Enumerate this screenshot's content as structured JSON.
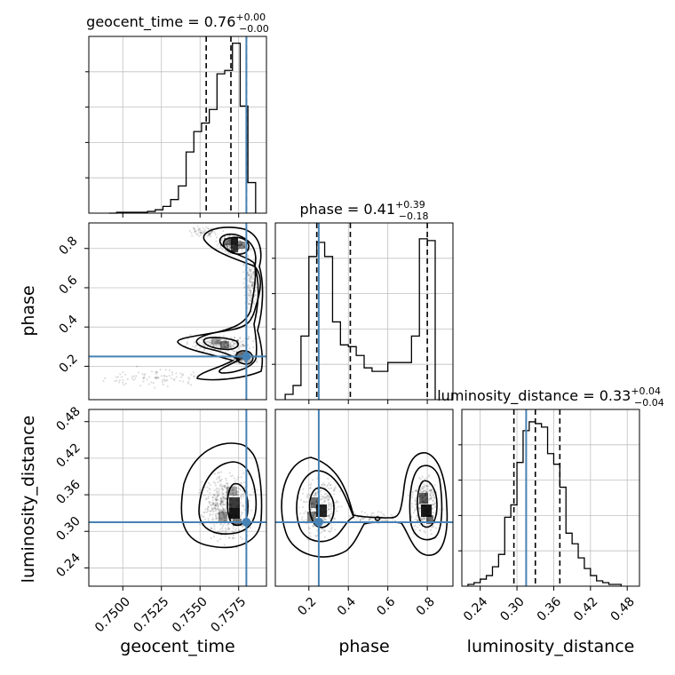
{
  "colors": {
    "truth": "#4682b4",
    "hist": "#000000",
    "grid": "#c0c0c0",
    "quantile": "#000000"
  },
  "chart_data": {
    "type": "corner",
    "parameters": [
      "geocent_time",
      "phase",
      "luminosity_distance"
    ],
    "truth": {
      "geocent_time": 0.758,
      "phase": 0.25,
      "luminosity_distance": 0.315
    },
    "panels": [
      {
        "id": "hist-geocent_time",
        "type": "histogram",
        "param": "geocent_time",
        "title": {
          "name": "geocent_time",
          "median": "0.76",
          "plus": "+0.00",
          "minus": "−0.00"
        },
        "xlim": [
          0.7478,
          0.7593
        ],
        "ylim": [
          0,
          1.04
        ],
        "edges": [
          0.7491,
          0.7496,
          0.7501,
          0.7506,
          0.7511,
          0.7516,
          0.7521,
          0.7526,
          0.7531,
          0.7536,
          0.7541,
          0.7546,
          0.7551,
          0.7556,
          0.7561,
          0.7566,
          0.7571,
          0.7576,
          0.7581,
          0.7586
        ],
        "counts": [
          0.0,
          0.005,
          0.005,
          0.005,
          0.005,
          0.01,
          0.02,
          0.04,
          0.08,
          0.16,
          0.36,
          0.48,
          0.53,
          0.61,
          0.82,
          0.84,
          1.0,
          0.63,
          0.18
        ],
        "quantiles": [
          0.7554,
          0.757,
          0.758
        ],
        "xticks": [
          0.75,
          0.7525,
          0.755,
          0.7575
        ],
        "xtick_labels": []
      },
      {
        "id": "scatter-phase-geocent",
        "type": "density2d",
        "x_param": "geocent_time",
        "y_param": "phase",
        "xlim": [
          0.7478,
          0.7593
        ],
        "ylim": [
          0.03,
          0.93
        ],
        "yticks": [
          0.2,
          0.4,
          0.6,
          0.8
        ],
        "ytick_labels": [
          "0.2",
          "0.4",
          "0.6",
          "0.8"
        ],
        "ylabel": "phase"
      },
      {
        "id": "hist-phase",
        "type": "histogram",
        "param": "phase",
        "title": {
          "name": "phase",
          "median": "0.41",
          "plus": "+0.39",
          "minus": "−0.18"
        },
        "xlim": [
          0.03,
          0.93
        ],
        "ylim": [
          0,
          1.0
        ],
        "edges": [
          0.08,
          0.12,
          0.16,
          0.2,
          0.24,
          0.28,
          0.32,
          0.36,
          0.4,
          0.44,
          0.48,
          0.52,
          0.56,
          0.6,
          0.64,
          0.68,
          0.72,
          0.76,
          0.8,
          0.84
        ],
        "counts": [
          0.03,
          0.08,
          0.36,
          0.81,
          0.89,
          0.81,
          0.44,
          0.31,
          0.3,
          0.25,
          0.18,
          0.16,
          0.16,
          0.21,
          0.21,
          0.21,
          0.36,
          0.91,
          0.9
        ],
        "quantiles": [
          0.24,
          0.41,
          0.8
        ],
        "xticks": [
          0.2,
          0.4,
          0.6,
          0.8
        ],
        "xtick_labels": []
      },
      {
        "id": "scatter-dist-geocent",
        "type": "density2d",
        "x_param": "geocent_time",
        "y_param": "luminosity_distance",
        "xlim": [
          0.7478,
          0.7593
        ],
        "ylim": [
          0.21,
          0.5
        ],
        "xticks": [
          0.75,
          0.7525,
          0.755,
          0.7575
        ],
        "xtick_labels": [
          "0.7500",
          "0.7525",
          "0.7550",
          "0.7575"
        ],
        "yticks": [
          0.24,
          0.3,
          0.36,
          0.42,
          0.48
        ],
        "ytick_labels": [
          "0.24",
          "0.30",
          "0.36",
          "0.42",
          "0.48"
        ],
        "xlabel": "geocent_time",
        "ylabel": "luminosity_distance"
      },
      {
        "id": "scatter-dist-phase",
        "type": "density2d",
        "x_param": "phase",
        "y_param": "luminosity_distance",
        "xlim": [
          0.03,
          0.93
        ],
        "ylim": [
          0.21,
          0.5
        ],
        "xticks": [
          0.2,
          0.4,
          0.6,
          0.8
        ],
        "xtick_labels": [
          "0.2",
          "0.4",
          "0.6",
          "0.8"
        ],
        "xlabel": "phase"
      },
      {
        "id": "hist-luminosity_distance",
        "type": "histogram",
        "param": "luminosity_distance",
        "title": {
          "name": "luminosity_distance",
          "median": "0.33",
          "plus": "+0.04",
          "minus": "−0.04"
        },
        "xlim": [
          0.21,
          0.5
        ],
        "ylim": [
          0,
          1.0
        ],
        "edges": [
          0.22,
          0.23,
          0.24,
          0.25,
          0.26,
          0.27,
          0.28,
          0.29,
          0.3,
          0.31,
          0.32,
          0.33,
          0.34,
          0.35,
          0.36,
          0.37,
          0.38,
          0.39,
          0.4,
          0.41,
          0.42,
          0.43,
          0.44,
          0.45,
          0.46,
          0.47
        ],
        "counts": [
          0.01,
          0.02,
          0.04,
          0.06,
          0.11,
          0.18,
          0.39,
          0.46,
          0.7,
          0.88,
          0.93,
          0.92,
          0.9,
          0.75,
          0.69,
          0.56,
          0.3,
          0.24,
          0.16,
          0.1,
          0.06,
          0.03,
          0.02,
          0.01,
          0.01
        ],
        "quantiles": [
          0.295,
          0.33,
          0.37
        ],
        "xticks": [
          0.24,
          0.3,
          0.36,
          0.42,
          0.48
        ],
        "xtick_labels": [
          "0.24",
          "0.30",
          "0.36",
          "0.42",
          "0.48"
        ],
        "xlabel": "luminosity_distance"
      }
    ]
  }
}
